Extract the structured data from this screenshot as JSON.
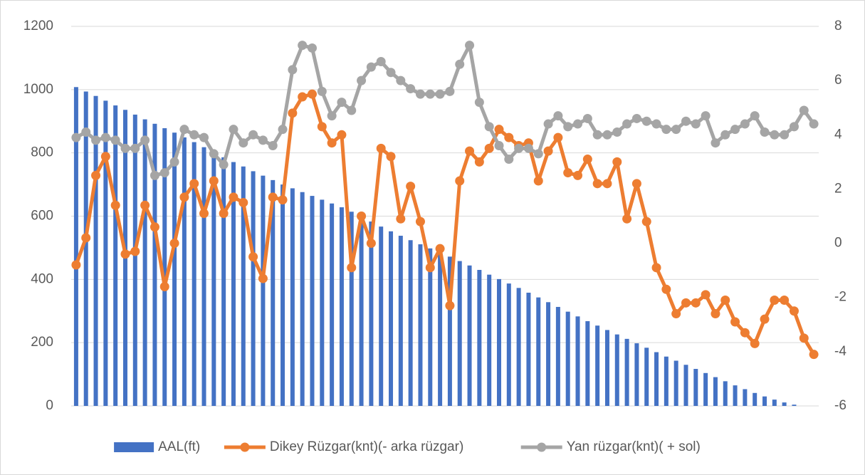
{
  "chart_data": {
    "type": "combo",
    "categories": [
      null,
      null,
      null,
      null,
      null,
      null,
      null,
      null,
      null,
      null,
      null,
      null,
      null,
      null,
      null,
      null,
      null,
      null,
      null,
      null,
      null,
      null,
      null,
      null,
      null,
      null,
      null,
      null,
      null,
      null,
      null,
      null,
      null,
      null,
      null,
      null,
      null,
      null,
      null,
      null,
      null,
      null,
      null,
      null,
      null,
      null,
      null,
      null,
      null,
      null,
      null,
      null,
      null,
      null,
      null,
      null,
      null,
      null,
      null,
      null,
      null,
      null,
      null,
      null,
      null,
      null,
      null,
      null,
      null,
      null,
      null,
      null,
      null,
      null,
      null,
      null
    ],
    "series": [
      {
        "name": "AAL(ft)",
        "type": "bar",
        "axis": "y",
        "color": "#4472c4",
        "values": [
          1008,
          994,
          980,
          965,
          950,
          936,
          921,
          906,
          892,
          878,
          864,
          849,
          834,
          818,
          802,
          786,
          771,
          757,
          742,
          728,
          714,
          700,
          688,
          676,
          664,
          652,
          640,
          628,
          614,
          600,
          583,
          567,
          552,
          538,
          524,
          511,
          498,
          485,
          472,
          458,
          444,
          430,
          415,
          401,
          387,
          373,
          358,
          343,
          328,
          313,
          298,
          283,
          268,
          254,
          240,
          226,
          212,
          198,
          184,
          170,
          156,
          143,
          130,
          117,
          104,
          91,
          78,
          65,
          53,
          41,
          30,
          20,
          11,
          4,
          null,
          null
        ]
      },
      {
        "name": "Dikey Rüzgar(knt)(- arka rüzgar)",
        "type": "line",
        "axis": "y2",
        "color": "#ed7d31",
        "values": [
          -0.8,
          0.2,
          2.5,
          3.2,
          1.4,
          -0.4,
          -0.3,
          1.4,
          0.6,
          -1.6,
          0.0,
          1.7,
          2.2,
          1.1,
          2.3,
          1.1,
          1.7,
          1.5,
          -0.5,
          -1.3,
          1.7,
          1.6,
          4.8,
          5.4,
          5.5,
          4.3,
          3.7,
          4.0,
          -0.9,
          1.0,
          0.0,
          3.5,
          3.2,
          0.9,
          2.1,
          0.8,
          -0.9,
          -0.2,
          -2.3,
          2.3,
          3.4,
          3.0,
          3.5,
          4.2,
          3.9,
          3.6,
          3.7,
          2.3,
          3.4,
          3.9,
          2.6,
          2.5,
          3.1,
          2.2,
          2.2,
          3.0,
          0.9,
          2.2,
          0.8,
          -0.9,
          -1.7,
          -2.6,
          -2.2,
          -2.2,
          -1.9,
          -2.6,
          -2.1,
          -2.9,
          -3.3,
          -3.7,
          -2.8,
          -2.1,
          -2.1,
          -2.5,
          -3.5,
          -4.1
        ]
      },
      {
        "name": "Yan rüzgar(knt)( + sol)",
        "type": "line",
        "axis": "y2",
        "color": "#a5a5a5",
        "values": [
          3.9,
          4.1,
          3.8,
          3.9,
          3.8,
          3.5,
          3.5,
          3.8,
          2.5,
          2.6,
          3.0,
          4.2,
          4.0,
          3.9,
          3.3,
          2.9,
          4.2,
          3.7,
          4.0,
          3.8,
          3.6,
          4.2,
          6.4,
          7.3,
          7.2,
          5.6,
          4.7,
          5.2,
          4.9,
          6.0,
          6.5,
          6.7,
          6.3,
          6.0,
          5.7,
          5.5,
          5.5,
          5.5,
          5.6,
          6.6,
          7.3,
          5.2,
          4.3,
          3.6,
          3.1,
          3.5,
          3.5,
          3.3,
          4.4,
          4.7,
          4.3,
          4.4,
          4.6,
          4.0,
          4.0,
          4.1,
          4.4,
          4.6,
          4.5,
          4.4,
          4.2,
          4.2,
          4.5,
          4.4,
          4.7,
          3.7,
          4.0,
          4.2,
          4.4,
          4.7,
          4.1,
          4.0,
          4.0,
          4.3,
          4.9,
          4.4
        ]
      }
    ],
    "ylim": [
      0,
      1200
    ],
    "yticks": [
      0,
      200,
      400,
      600,
      800,
      1000,
      1200
    ],
    "y2lim": [
      -6,
      8
    ],
    "y2ticks": [
      -6,
      -4,
      -2,
      0,
      2,
      4,
      6,
      8
    ],
    "grid": true,
    "legend": "bottom"
  }
}
